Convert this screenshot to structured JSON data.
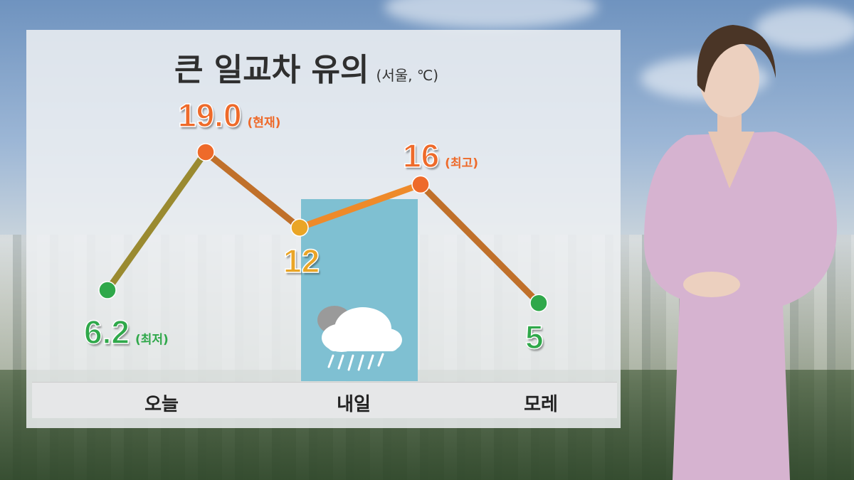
{
  "chart_data": {
    "type": "line",
    "title": "큰 일교차 유의",
    "subtitle": "(서울, ℃)",
    "categories": [
      "오늘",
      "내일",
      "모레"
    ],
    "points": [
      {
        "value": 6.2,
        "label": "6.2",
        "note": "(최저)",
        "color": "#2fa84a"
      },
      {
        "value": 19.0,
        "label": "19.0",
        "note": "(현재)",
        "color": "#ee6a2a"
      },
      {
        "value": 12,
        "label": "12",
        "note": "",
        "color": "#eaa526"
      },
      {
        "value": 16,
        "label": "16",
        "note": "(최고)",
        "color": "#ee6a2a"
      },
      {
        "value": 5,
        "label": "5",
        "note": "",
        "color": "#2fa84a"
      }
    ],
    "weather_icon": "cloud-rain-icon",
    "rain_highlight_color": "#7fc0d2"
  }
}
